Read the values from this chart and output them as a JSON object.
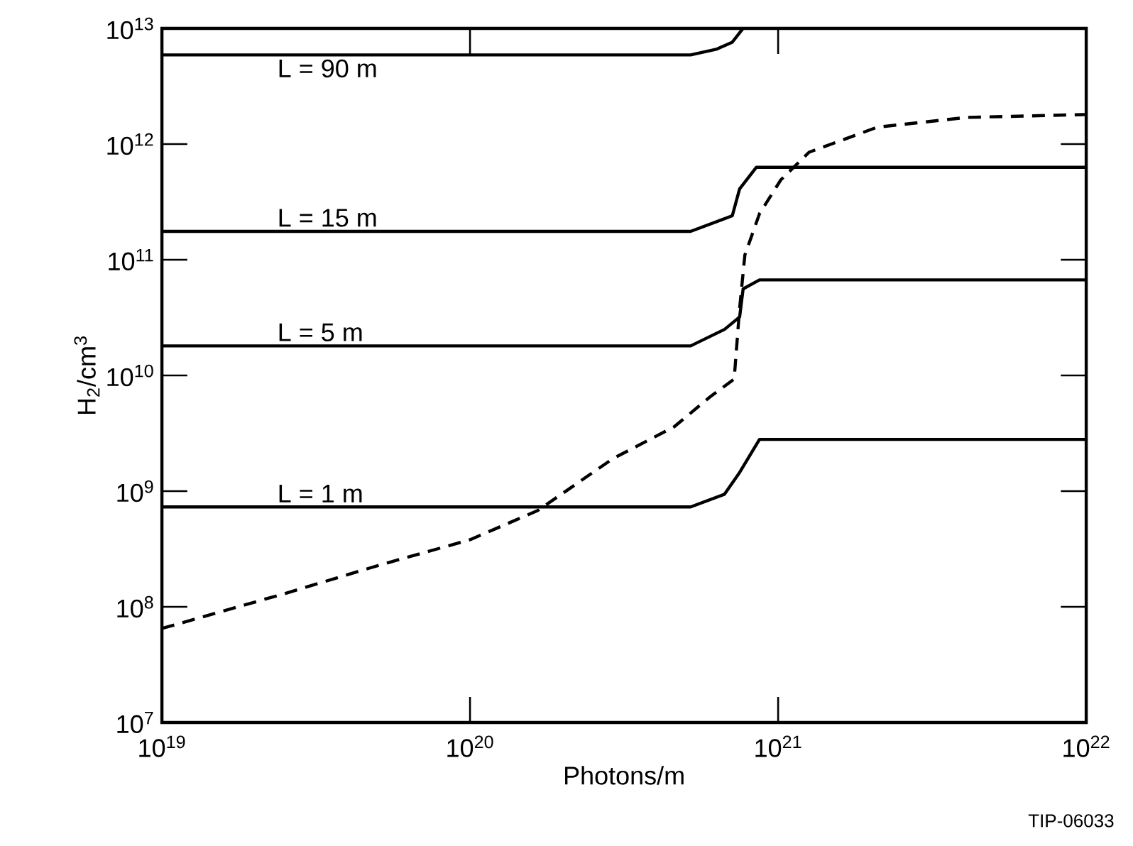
{
  "chart_data": {
    "type": "line",
    "xlabel": "Photons/m",
    "ylabel": "H$_{2}$/cm$^{3}$",
    "log": "xy",
    "xlim": [
      1e+19,
      1e+22
    ],
    "ylim": [
      10000000.0,
      10000000000000.0
    ],
    "xticks": [
      {
        "value": 1e+19,
        "label": "10$^{19}$"
      },
      {
        "value": 1e+20,
        "label": "10$^{20}$"
      },
      {
        "value": 1e+21,
        "label": "10$^{21}$"
      },
      {
        "value": 1e+22,
        "label": "10$^{22}$"
      }
    ],
    "yticks": [
      {
        "value": 10000000.0,
        "label": "10$^{7}$"
      },
      {
        "value": 100000000.0,
        "label": "10$^{8}$"
      },
      {
        "value": 1000000000.0,
        "label": "10$^{9}$"
      },
      {
        "value": 10000000000.0,
        "label": "10$^{10}$"
      },
      {
        "value": 100000000000.0,
        "label": "10$^{11}$"
      },
      {
        "value": 1000000000000.0,
        "label": "10$^{12}$"
      },
      {
        "value": 10000000000000.0,
        "label": "10$^{13}$"
      }
    ],
    "grid": false,
    "marker": "none",
    "series": [
      {
        "name": "L = 90 m",
        "color": "#000000",
        "line_style": "solid",
        "x": [
          1e+19,
          5.2e+20,
          6.3e+20,
          7.1e+20,
          7.7e+20
        ],
        "values": [
          5900000000000.0,
          5900000000000.0,
          6600000000000.0,
          7600000000000.0,
          10000000000000.0
        ]
      },
      {
        "name": "L = 15 m",
        "color": "#000000",
        "line_style": "solid",
        "x": [
          1e+19,
          5.2e+20,
          7.1e+20,
          7.5e+20,
          8.5e+20,
          1e+22
        ],
        "values": [
          176000000000.0,
          176000000000.0,
          240000000000.0,
          410000000000.0,
          630000000000.0,
          630000000000.0
        ]
      },
      {
        "name": "L = 5 m",
        "color": "#000000",
        "line_style": "solid",
        "x": [
          1e+19,
          5.2e+20,
          6.7e+20,
          7.5e+20,
          7.7e+20,
          8.7e+20,
          1e+22
        ],
        "values": [
          18000000000.0,
          18000000000.0,
          25000000000.0,
          32000000000.0,
          56000000000.0,
          67000000000.0,
          67000000000.0
        ]
      },
      {
        "name": "L = 1 m",
        "color": "#000000",
        "line_style": "solid",
        "x": [
          1e+19,
          5.2e+20,
          6.7e+20,
          7.5e+20,
          8.7e+20,
          1e+22
        ],
        "values": [
          730000000.0,
          730000000.0,
          940000000.0,
          1450000000.0,
          2800000000.0,
          2800000000.0
        ]
      },
      {
        "color": "#000000",
        "line_style": "dashed",
        "x": [
          1e+19,
          2.5e+19,
          5.1e+19,
          1e+20,
          1.66e+20,
          2.9e+20,
          4.6e+20,
          6e+20,
          7.2e+20,
          7.5e+20,
          7.8e+20,
          8.7e+20,
          1.02e+21,
          1.26e+21,
          2.1e+21,
          4.1e+21,
          1e+22
        ],
        "values": [
          65000000.0,
          130000000.0,
          230000000.0,
          380000000.0,
          680000000.0,
          1900000000.0,
          3600000000.0,
          6500000000.0,
          9300000000.0,
          38000000000.0,
          110000000000.0,
          250000000000.0,
          490000000000.0,
          850000000000.0,
          1400000000000.0,
          1700000000000.0,
          1800000000000.0
        ]
      }
    ],
    "annotations": [
      "TIP-06033"
    ]
  }
}
